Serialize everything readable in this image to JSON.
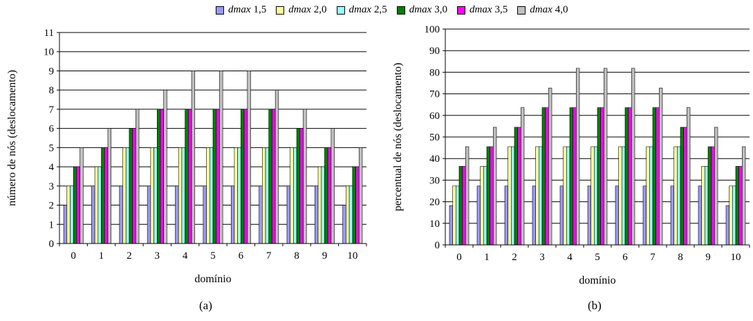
{
  "legend": [
    {
      "prefix": "dmax",
      "value": "1,5",
      "color": "#9999ff"
    },
    {
      "prefix": "dmax",
      "value": "2,0",
      "color": "#ffff99"
    },
    {
      "prefix": "dmax",
      "value": "2,5",
      "color": "#99ffff"
    },
    {
      "prefix": "dmax",
      "value": "3,0",
      "color": "#008000"
    },
    {
      "prefix": "dmax",
      "value": "3,5",
      "color": "#ff00ff"
    },
    {
      "prefix": "dmax",
      "value": "4,0",
      "color": "#c0c0c0"
    }
  ],
  "chart_data": [
    {
      "type": "bar",
      "caption": "(a)",
      "xlabel": "domínio",
      "ylabel": "número de nós (deslocamento)",
      "categories": [
        "0",
        "1",
        "2",
        "3",
        "4",
        "5",
        "6",
        "7",
        "8",
        "9",
        "10"
      ],
      "ylim": [
        0,
        11
      ],
      "yticks": [
        0,
        1,
        2,
        3,
        4,
        5,
        6,
        7,
        8,
        9,
        10,
        11
      ],
      "grid": true,
      "legend_position": "top",
      "series": [
        {
          "name": "dmax 1,5",
          "values": [
            2,
            3,
            3,
            3,
            3,
            3,
            3,
            3,
            3,
            3,
            2
          ]
        },
        {
          "name": "dmax 2,0",
          "values": [
            3,
            4,
            5,
            5,
            5,
            5,
            5,
            5,
            5,
            4,
            3
          ]
        },
        {
          "name": "dmax 2,5",
          "values": [
            3,
            4,
            5,
            5,
            5,
            5,
            5,
            5,
            5,
            4,
            3
          ]
        },
        {
          "name": "dmax 3,0",
          "values": [
            4,
            5,
            6,
            7,
            7,
            7,
            7,
            7,
            6,
            5,
            4
          ]
        },
        {
          "name": "dmax 3,5",
          "values": [
            4,
            5,
            6,
            7,
            7,
            7,
            7,
            7,
            6,
            5,
            4
          ]
        },
        {
          "name": "dmax 4,0",
          "values": [
            5,
            6,
            7,
            8,
            9,
            9,
            9,
            8,
            7,
            6,
            5
          ]
        }
      ]
    },
    {
      "type": "bar",
      "caption": "(b)",
      "xlabel": "domínio",
      "ylabel": "percentual de nós (deslocamento)",
      "categories": [
        "0",
        "1",
        "2",
        "3",
        "4",
        "5",
        "6",
        "7",
        "8",
        "9",
        "10"
      ],
      "ylim": [
        0,
        100
      ],
      "yticks": [
        0,
        10,
        20,
        30,
        40,
        50,
        60,
        70,
        80,
        90,
        100
      ],
      "grid": true,
      "legend_position": "top",
      "series": [
        {
          "name": "dmax 1,5",
          "values": [
            18.2,
            27.3,
            27.3,
            27.3,
            27.3,
            27.3,
            27.3,
            27.3,
            27.3,
            27.3,
            18.2
          ]
        },
        {
          "name": "dmax 2,0",
          "values": [
            27.3,
            36.4,
            45.5,
            45.5,
            45.5,
            45.5,
            45.5,
            45.5,
            45.5,
            36.4,
            27.3
          ]
        },
        {
          "name": "dmax 2,5",
          "values": [
            27.3,
            36.4,
            45.5,
            45.5,
            45.5,
            45.5,
            45.5,
            45.5,
            45.5,
            36.4,
            27.3
          ]
        },
        {
          "name": "dmax 3,0",
          "values": [
            36.4,
            45.5,
            54.5,
            63.6,
            63.6,
            63.6,
            63.6,
            63.6,
            54.5,
            45.5,
            36.4
          ]
        },
        {
          "name": "dmax 3,5",
          "values": [
            36.4,
            45.5,
            54.5,
            63.6,
            63.6,
            63.6,
            63.6,
            63.6,
            54.5,
            45.5,
            36.4
          ]
        },
        {
          "name": "dmax 4,0",
          "values": [
            45.5,
            54.5,
            63.6,
            72.7,
            81.8,
            81.8,
            81.8,
            72.7,
            63.6,
            54.5,
            45.5
          ]
        }
      ]
    }
  ]
}
